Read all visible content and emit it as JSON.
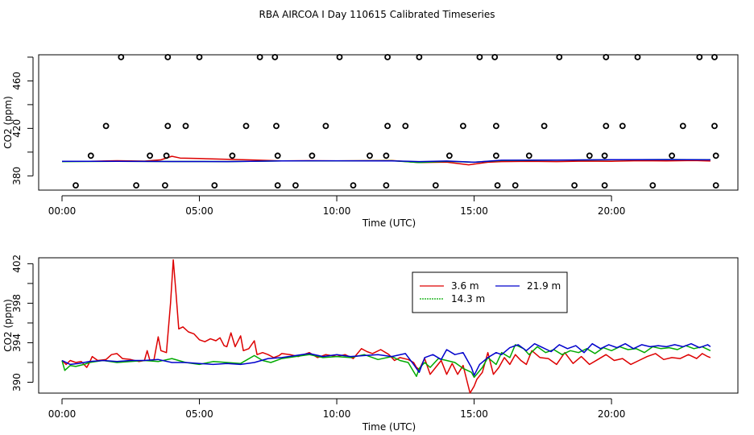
{
  "figure": {
    "title": "RBA AIRCOA I  Day 110615  Calibrated Timeseries"
  },
  "legend": {
    "entries": [
      {
        "label": "3.6 m",
        "color": "#dd0000"
      },
      {
        "label": "21.9 m",
        "color": "#0000cc"
      },
      {
        "label": "14.3 m",
        "color": "#00aa00"
      }
    ]
  },
  "chart_data": [
    {
      "type": "scatter+line",
      "panel": "top",
      "title": "RBA AIRCOA I  Day 110615  Calibrated Timeseries",
      "xlabel": "Time (UTC)",
      "ylabel": "CO2 (ppm)",
      "x_unit": "hours UTC",
      "xlim": [
        -0.85,
        24.6
      ],
      "ylim": [
        368,
        482
      ],
      "x_ticks": [
        0,
        5,
        10,
        15,
        20
      ],
      "x_tick_labels": [
        "00:00",
        "05:00",
        "10:00",
        "15:00",
        "20:00"
      ],
      "y_ticks": [
        380,
        420,
        460
      ],
      "y_tick_labels": [
        "380",
        "420",
        "460"
      ],
      "y_minor_ticks": [
        400,
        440,
        480
      ],
      "calibration_points": [
        {
          "level": 372,
          "times": [
            0.5,
            2.7,
            3.75,
            5.55,
            7.85,
            8.5,
            10.6,
            11.8,
            13.6,
            15.85,
            16.5,
            18.65,
            19.75,
            21.5,
            23.8
          ]
        },
        {
          "level": 397,
          "times": [
            1.05,
            3.2,
            3.8,
            6.2,
            7.85,
            9.1,
            11.2,
            11.8,
            14.1,
            15.8,
            17.0,
            19.2,
            19.75,
            22.2,
            23.8
          ]
        },
        {
          "level": 422,
          "times": [
            1.6,
            3.85,
            4.5,
            6.7,
            7.8,
            9.6,
            11.85,
            12.5,
            14.6,
            15.8,
            17.55,
            19.8,
            20.4,
            22.6,
            23.75
          ]
        },
        {
          "level": 480,
          "times": [
            2.15,
            3.85,
            5.0,
            7.2,
            7.75,
            10.1,
            11.85,
            13.0,
            15.2,
            15.75,
            18.1,
            19.8,
            20.95,
            23.2,
            23.75
          ]
        }
      ],
      "series": [
        {
          "name": "3.6 m",
          "x": [
            0,
            1,
            2,
            3,
            3.6,
            4.0,
            4.3,
            5,
            6,
            7,
            8,
            9,
            10,
            11,
            12,
            13,
            14,
            14.8,
            15.5,
            16,
            17,
            18,
            19,
            20,
            21,
            22,
            23,
            23.6
          ],
          "y": [
            392.3,
            392.2,
            392.8,
            392.4,
            393.5,
            396.5,
            395,
            394.6,
            394,
            393.4,
            392.6,
            392.8,
            392.6,
            392.8,
            393,
            391.2,
            391.6,
            389.3,
            391.5,
            392,
            392.3,
            392,
            392.4,
            392.3,
            392.8,
            392.6,
            392.9,
            392.5
          ]
        },
        {
          "name": "14.3 m",
          "x": [
            0,
            2,
            4,
            6,
            8,
            10,
            12,
            13,
            14,
            15,
            16,
            18,
            20,
            22,
            23.6
          ],
          "y": [
            392,
            392.2,
            392.1,
            392,
            392.6,
            392.6,
            392.8,
            391.2,
            392.3,
            391.5,
            393,
            393.2,
            393.5,
            393.7,
            393.6
          ]
        },
        {
          "name": "21.9 m",
          "x": [
            0,
            2,
            4,
            6,
            8,
            10,
            12,
            13,
            14,
            15,
            16,
            18,
            20,
            22,
            23.6
          ],
          "y": [
            392.2,
            392.2,
            392.1,
            392,
            392.6,
            392.7,
            392.6,
            392,
            392.5,
            391.5,
            393.2,
            393.3,
            393.6,
            393.7,
            393.5
          ]
        }
      ]
    },
    {
      "type": "line",
      "panel": "bottom",
      "xlabel": "Time (UTC)",
      "ylabel": "CO2 (ppm)",
      "x_unit": "hours UTC",
      "xlim": [
        -0.85,
        24.6
      ],
      "ylim": [
        388.9,
        402.6
      ],
      "x_ticks": [
        0,
        5,
        10,
        15,
        20
      ],
      "x_tick_labels": [
        "00:00",
        "05:00",
        "10:00",
        "15:00",
        "20:00"
      ],
      "y_ticks": [
        390,
        394,
        398,
        402
      ],
      "y_tick_labels": [
        "390",
        "394",
        "398",
        "402"
      ],
      "y_minor_ticks": [
        392,
        396,
        400
      ],
      "series": [
        {
          "name": "3.6 m",
          "color": "#dd0000",
          "x": [
            0,
            0.15,
            0.3,
            0.5,
            0.7,
            0.9,
            1.0,
            1.1,
            1.3,
            1.6,
            1.8,
            2.0,
            2.2,
            2.5,
            2.8,
            3.0,
            3.1,
            3.2,
            3.35,
            3.5,
            3.6,
            3.8,
            3.95,
            4.05,
            4.15,
            4.25,
            4.4,
            4.6,
            4.8,
            5.0,
            5.2,
            5.4,
            5.6,
            5.75,
            5.9,
            6.0,
            6.15,
            6.3,
            6.5,
            6.6,
            6.8,
            7.0,
            7.1,
            7.3,
            7.5,
            7.7,
            7.9,
            8.0,
            8.3,
            8.6,
            9.0,
            9.3,
            9.6,
            9.8,
            10.0,
            10.3,
            10.6,
            10.9,
            11.1,
            11.3,
            11.6,
            11.9,
            12.1,
            12.3,
            12.6,
            12.8,
            12.9,
            13.0,
            13.2,
            13.4,
            13.6,
            13.8,
            14.0,
            14.2,
            14.4,
            14.6,
            14.75,
            14.85,
            15.0,
            15.1,
            15.3,
            15.5,
            15.7,
            15.9,
            16.1,
            16.3,
            16.5,
            16.7,
            16.9,
            17.1,
            17.4,
            17.7,
            18.0,
            18.3,
            18.6,
            18.9,
            19.2,
            19.5,
            19.8,
            20.1,
            20.4,
            20.7,
            21.0,
            21.3,
            21.6,
            21.9,
            22.2,
            22.5,
            22.8,
            23.1,
            23.3,
            23.5,
            23.6
          ],
          "y": [
            392.2,
            391.8,
            392.2,
            392.0,
            392.1,
            391.5,
            392.0,
            392.6,
            392.2,
            392.3,
            392.8,
            392.9,
            392.4,
            392.3,
            392.1,
            392.2,
            393.2,
            392.2,
            392.3,
            394.6,
            393.2,
            393.0,
            398.0,
            402.4,
            399.0,
            395.4,
            395.6,
            395.1,
            394.9,
            394.3,
            394.1,
            394.4,
            394.2,
            394.5,
            393.7,
            393.6,
            395.0,
            393.6,
            394.7,
            393.2,
            393.4,
            394.2,
            392.8,
            393.0,
            392.8,
            392.5,
            392.7,
            392.9,
            392.8,
            392.6,
            393.0,
            392.5,
            392.8,
            392.7,
            392.6,
            392.8,
            392.4,
            393.4,
            393.1,
            392.9,
            393.3,
            392.8,
            392.2,
            392.5,
            392.3,
            392.0,
            391.5,
            391.3,
            392.4,
            390.8,
            391.5,
            392.2,
            390.8,
            391.9,
            390.8,
            391.7,
            390.0,
            388.9,
            389.6,
            390.3,
            391.0,
            393.0,
            390.8,
            391.5,
            392.5,
            391.8,
            392.8,
            392.2,
            391.8,
            393.2,
            392.5,
            392.4,
            391.8,
            393.0,
            391.9,
            392.6,
            391.8,
            392.3,
            392.8,
            392.2,
            392.4,
            391.8,
            392.2,
            392.6,
            392.9,
            392.3,
            392.5,
            392.4,
            392.8,
            392.4,
            392.9,
            392.6,
            392.5
          ]
        },
        {
          "name": "14.3 m",
          "color": "#00aa00",
          "x": [
            0,
            0.1,
            0.3,
            0.5,
            0.8,
            1.0,
            1.5,
            2.0,
            2.5,
            3.0,
            3.5,
            4.0,
            4.5,
            5.0,
            5.5,
            6.0,
            6.5,
            7.0,
            7.3,
            7.6,
            8.0,
            8.5,
            9.0,
            9.5,
            10.0,
            10.5,
            11.0,
            11.5,
            12.0,
            12.3,
            12.6,
            12.9,
            13.0,
            13.2,
            13.4,
            13.7,
            14.0,
            14.3,
            14.6,
            14.9,
            15.0,
            15.3,
            15.5,
            15.8,
            16.0,
            16.3,
            16.5,
            16.8,
            17.0,
            17.3,
            17.6,
            17.9,
            18.2,
            18.5,
            18.8,
            19.1,
            19.4,
            19.7,
            20.0,
            20.3,
            20.6,
            20.9,
            21.2,
            21.5,
            21.8,
            22.1,
            22.4,
            22.7,
            23.0,
            23.3,
            23.6
          ],
          "y": [
            392.2,
            391.2,
            391.7,
            391.6,
            391.8,
            392.0,
            392.2,
            392.0,
            392.1,
            392.2,
            392.1,
            392.4,
            392.0,
            391.8,
            392.1,
            392.0,
            391.9,
            392.7,
            392.2,
            392.0,
            392.4,
            392.6,
            392.8,
            392.5,
            392.6,
            392.5,
            392.8,
            392.3,
            392.6,
            392.2,
            392.0,
            390.6,
            391.4,
            392.0,
            391.5,
            392.4,
            392.2,
            392.0,
            391.4,
            391.0,
            390.5,
            391.5,
            392.5,
            391.8,
            393.0,
            392.5,
            393.8,
            393.4,
            392.8,
            393.6,
            393.0,
            393.3,
            392.8,
            393.2,
            393.0,
            393.4,
            392.9,
            393.5,
            393.2,
            393.6,
            393.3,
            393.4,
            393.0,
            393.6,
            393.4,
            393.5,
            393.3,
            393.7,
            393.4,
            393.6,
            393.2
          ]
        },
        {
          "name": "21.9 m",
          "color": "#0000cc",
          "x": [
            0,
            0.3,
            0.6,
            1.0,
            1.5,
            2.0,
            2.5,
            3.0,
            3.5,
            4.0,
            4.5,
            5.0,
            5.5,
            6.0,
            6.5,
            7.0,
            7.5,
            8.0,
            8.5,
            9.0,
            9.5,
            10.0,
            10.5,
            11.0,
            11.5,
            12.0,
            12.5,
            12.8,
            13.0,
            13.2,
            13.5,
            13.8,
            14.0,
            14.3,
            14.6,
            14.9,
            15.0,
            15.2,
            15.5,
            15.8,
            16.0,
            16.3,
            16.6,
            16.9,
            17.2,
            17.5,
            17.8,
            18.1,
            18.4,
            18.7,
            19.0,
            19.3,
            19.6,
            19.9,
            20.2,
            20.5,
            20.8,
            21.1,
            21.4,
            21.7,
            22.0,
            22.3,
            22.6,
            22.9,
            23.2,
            23.5,
            23.6
          ],
          "y": [
            392.2,
            391.8,
            391.9,
            392.1,
            392.2,
            392.1,
            392.2,
            392.2,
            392.3,
            392.0,
            392.0,
            391.9,
            391.8,
            391.9,
            391.8,
            392.0,
            392.4,
            392.5,
            392.7,
            392.9,
            392.6,
            392.8,
            392.6,
            392.7,
            392.8,
            392.6,
            392.9,
            391.8,
            391.0,
            392.5,
            392.8,
            392.3,
            393.3,
            392.8,
            393.0,
            391.5,
            390.7,
            391.8,
            392.5,
            393.0,
            392.8,
            393.5,
            393.8,
            393.2,
            393.9,
            393.5,
            393.1,
            393.8,
            393.4,
            393.7,
            393.0,
            393.9,
            393.4,
            393.8,
            393.5,
            393.9,
            393.4,
            393.8,
            393.6,
            393.7,
            393.6,
            393.8,
            393.6,
            393.9,
            393.5,
            393.8,
            393.6
          ]
        }
      ]
    }
  ]
}
